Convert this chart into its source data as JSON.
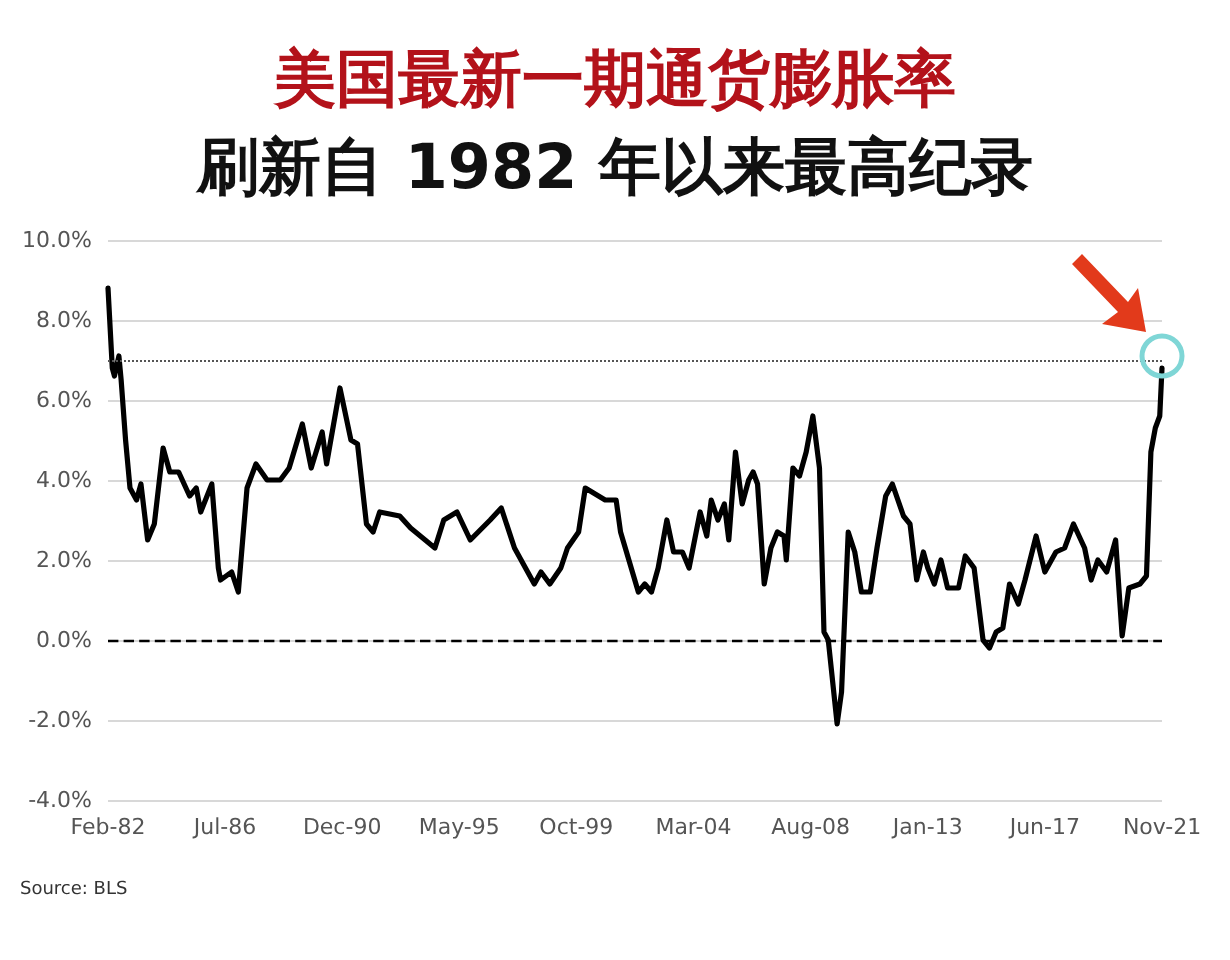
{
  "chart_data": {
    "type": "line",
    "title": "美国最新一期通货膨胀率",
    "subtitle": "刷新自 1982 年以来最高纪录",
    "x": [
      "1982-02",
      "1982-04",
      "1982-05",
      "1982-07",
      "1982-08",
      "1982-10",
      "1982-12",
      "1983-03",
      "1983-05",
      "1983-08",
      "1983-11",
      "1984-03",
      "1984-06",
      "1984-10",
      "1985-03",
      "1985-06",
      "1985-08",
      "1986-01",
      "1986-04",
      "1986-05",
      "1986-10",
      "1987-01",
      "1987-05",
      "1987-09",
      "1988-02",
      "1988-08",
      "1988-12",
      "1989-06",
      "1989-10",
      "1990-03",
      "1990-05",
      "1990-11",
      "1991-04",
      "1991-07",
      "1991-11",
      "1992-02",
      "1992-05",
      "1993-02",
      "1993-07",
      "1994-06",
      "1994-10",
      "1995-04",
      "1995-10",
      "1996-07",
      "1996-12",
      "1997-06",
      "1998-03",
      "1998-06",
      "1998-10",
      "1999-03",
      "1999-06",
      "1999-11",
      "2000-02",
      "2000-11",
      "2001-04",
      "2001-06",
      "2002-02",
      "2002-05",
      "2002-08",
      "2002-11",
      "2003-03",
      "2003-06",
      "2003-10",
      "2004-01",
      "2004-06",
      "2004-09",
      "2004-11",
      "2005-02",
      "2005-05",
      "2005-07",
      "2005-10",
      "2006-01",
      "2006-04",
      "2006-06",
      "2006-08",
      "2006-11",
      "2007-02",
      "2007-05",
      "2007-08",
      "2007-09",
      "2007-12",
      "2008-03",
      "2008-06",
      "2008-09",
      "2008-12",
      "2009-02",
      "2009-04",
      "2009-08",
      "2009-10",
      "2010-01",
      "2010-04",
      "2010-07",
      "2010-11",
      "2011-02",
      "2011-06",
      "2011-09",
      "2012-02",
      "2012-05",
      "2012-08",
      "2012-11",
      "2013-01",
      "2013-04",
      "2013-07",
      "2013-10",
      "2014-03",
      "2014-06",
      "2014-10",
      "2015-02",
      "2015-05",
      "2015-08",
      "2015-11",
      "2016-02",
      "2016-06",
      "2016-09",
      "2017-02",
      "2017-06",
      "2017-11",
      "2018-03",
      "2018-07",
      "2018-12",
      "2019-03",
      "2019-06",
      "2019-10",
      "2020-02",
      "2020-05",
      "2020-08",
      "2021-01",
      "2021-04",
      "2021-06",
      "2021-08",
      "2021-10",
      "2021-11"
    ],
    "series": [
      {
        "color": "#000000",
        "values": [
          8.8,
          6.8,
          6.6,
          7.1,
          6.5,
          5.0,
          3.8,
          3.5,
          3.9,
          2.5,
          2.9,
          4.8,
          4.2,
          4.2,
          3.6,
          3.8,
          3.2,
          3.9,
          1.8,
          1.5,
          1.7,
          1.2,
          3.8,
          4.4,
          4.0,
          4.0,
          4.3,
          5.4,
          4.3,
          5.2,
          4.4,
          6.3,
          5.0,
          4.9,
          2.9,
          2.7,
          3.2,
          3.1,
          2.8,
          2.3,
          3.0,
          3.2,
          2.5,
          3.0,
          3.3,
          2.3,
          1.4,
          1.7,
          1.4,
          1.8,
          2.3,
          2.7,
          3.8,
          3.5,
          3.5,
          2.7,
          1.2,
          1.4,
          1.2,
          1.8,
          3.0,
          2.2,
          2.2,
          1.8,
          3.2,
          2.6,
          3.5,
          3.0,
          3.4,
          2.5,
          4.7,
          3.4,
          4.0,
          4.2,
          3.9,
          1.4,
          2.3,
          2.7,
          2.6,
          2.0,
          4.3,
          4.1,
          4.7,
          5.6,
          4.3,
          0.2,
          0.0,
          -2.1,
          -1.3,
          2.7,
          2.2,
          1.2,
          1.2,
          2.3,
          3.6,
          3.9,
          3.1,
          2.9,
          1.5,
          2.2,
          1.8,
          1.4,
          2.0,
          1.3,
          1.3,
          2.1,
          1.8,
          0.0,
          -0.2,
          0.2,
          0.3,
          1.4,
          0.9,
          1.5,
          2.6,
          1.7,
          2.2,
          2.3,
          2.9,
          2.3,
          1.5,
          2.0,
          1.7,
          2.5,
          0.1,
          1.3,
          1.4,
          1.6,
          4.7,
          5.3,
          5.6,
          6.8
        ]
      }
    ],
    "xlim": [
      "1982-02",
      "2021-11"
    ],
    "xticks": [
      {
        "value": "1982-02",
        "label": "Feb-82"
      },
      {
        "value": "1986-07",
        "label": "Jul-86"
      },
      {
        "value": "1990-12",
        "label": "Dec-90"
      },
      {
        "value": "1995-05",
        "label": "May-95"
      },
      {
        "value": "1999-10",
        "label": "Oct-99"
      },
      {
        "value": "2004-03",
        "label": "Mar-04"
      },
      {
        "value": "2008-08",
        "label": "Aug-08"
      },
      {
        "value": "2013-01",
        "label": "Jan-13"
      },
      {
        "value": "2017-06",
        "label": "Jun-17"
      },
      {
        "value": "2021-11",
        "label": "Nov-21"
      }
    ],
    "ylim": [
      -4,
      10
    ],
    "yticks": [
      {
        "value": -4,
        "label": "-4.0%"
      },
      {
        "value": -2,
        "label": "-2.0%"
      },
      {
        "value": 0,
        "label": "0.0%"
      },
      {
        "value": 2,
        "label": "2.0%"
      },
      {
        "value": 4,
        "label": "4.0%"
      },
      {
        "value": 6,
        "label": "6.0%"
      },
      {
        "value": 8,
        "label": "8.0%"
      },
      {
        "value": 10,
        "label": "10.0%"
      }
    ],
    "ref_lines": [
      {
        "axis": "y",
        "value": 0,
        "color": "#000000",
        "line_style": "dashed"
      },
      {
        "axis": "y",
        "value": 7.0,
        "color": "#555555",
        "line_style": "dotted"
      }
    ],
    "grid": "y",
    "marker": "none",
    "line_style": "solid",
    "annotations": [
      "Source: BLS"
    ]
  }
}
